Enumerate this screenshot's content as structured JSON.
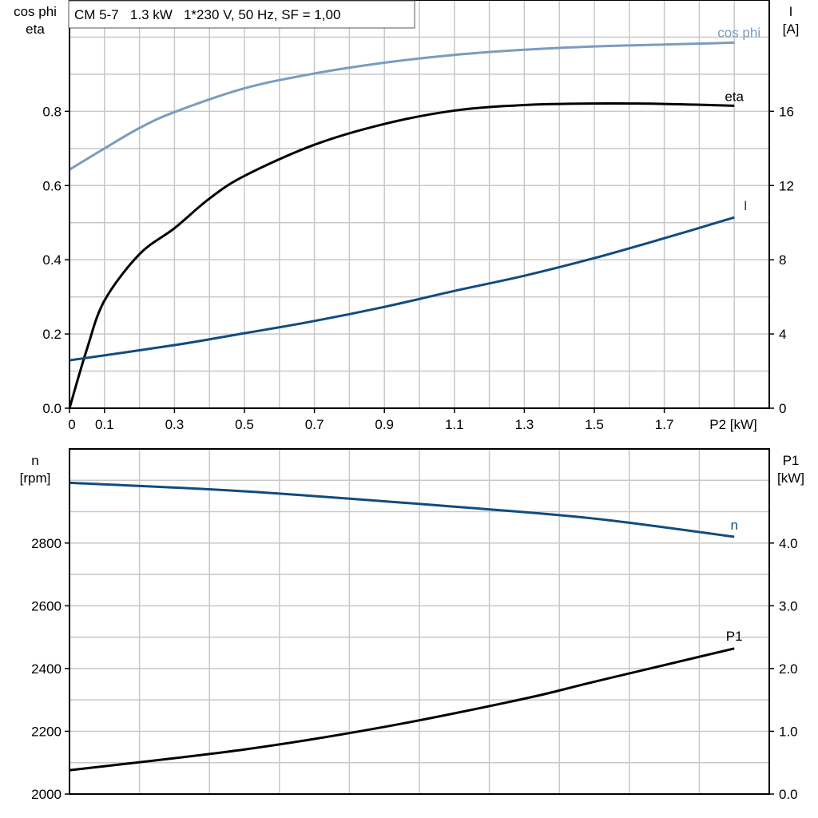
{
  "chart_data": [
    {
      "type": "line",
      "title": "CM 5-7   1.3 kW   1*230 V, 50 Hz, SF = 1,00",
      "xlabel": "P2 [kW]",
      "ylabel_left": [
        "cos phi",
        "eta"
      ],
      "ylabel_right": [
        "I",
        "[A]"
      ],
      "xlim": [
        0,
        2.0
      ],
      "ylim_left": [
        0,
        1.1
      ],
      "ylim_right": [
        0,
        22
      ],
      "grid": true,
      "x_ticks": [
        "0",
        "0.1",
        "0.3",
        "0.5",
        "0.7",
        "0.9",
        "1.1",
        "1.3",
        "1.5",
        "1.7"
      ],
      "y_left_ticks": [
        "0.0",
        "0.2",
        "0.4",
        "0.6",
        "0.8"
      ],
      "y_right_ticks": [
        "0",
        "4",
        "8",
        "12",
        "16"
      ],
      "series": [
        {
          "name": "cos phi",
          "axis": "left",
          "color": "#7a9cbf",
          "x": [
            0,
            0.1,
            0.2,
            0.3,
            0.5,
            0.7,
            0.9,
            1.1,
            1.3,
            1.5,
            1.7,
            1.9
          ],
          "y": [
            0.643,
            0.7,
            0.755,
            0.798,
            0.862,
            0.902,
            0.931,
            0.952,
            0.966,
            0.975,
            0.98,
            0.985
          ]
        },
        {
          "name": "eta",
          "axis": "left",
          "color": "#000000",
          "x": [
            0,
            0.05,
            0.1,
            0.2,
            0.3,
            0.4,
            0.5,
            0.7,
            0.9,
            1.1,
            1.3,
            1.5,
            1.7,
            1.9
          ],
          "y": [
            0,
            0.16,
            0.29,
            0.415,
            0.485,
            0.565,
            0.626,
            0.71,
            0.766,
            0.802,
            0.817,
            0.821,
            0.82,
            0.815
          ]
        },
        {
          "name": "I",
          "axis": "right",
          "color": "#0f4c81",
          "x": [
            0,
            0.3,
            0.5,
            0.7,
            0.9,
            1.1,
            1.3,
            1.5,
            1.7,
            1.9
          ],
          "y": [
            2.58,
            3.4,
            4.04,
            4.7,
            5.46,
            6.32,
            7.14,
            8.09,
            9.16,
            10.28
          ]
        }
      ]
    },
    {
      "type": "line",
      "ylabel_left": [
        "n",
        "[rpm]"
      ],
      "ylabel_right": [
        "P1",
        "[kW]"
      ],
      "xlim": [
        0,
        2.0
      ],
      "ylim_left": [
        2000,
        3100
      ],
      "ylim_right": [
        0,
        5.5
      ],
      "grid": true,
      "y_left_ticks": [
        "2000",
        "2200",
        "2400",
        "2600",
        "2800"
      ],
      "y_right_ticks": [
        "0.0",
        "1.0",
        "2.0",
        "3.0",
        "4.0"
      ],
      "series": [
        {
          "name": "n",
          "axis": "left",
          "color": "#0f4c81",
          "x": [
            0,
            0.5,
            1.1,
            1.5,
            1.9
          ],
          "y": [
            2992,
            2965,
            2916,
            2878,
            2820
          ]
        },
        {
          "name": "P1",
          "axis": "right",
          "color": "#000000",
          "x": [
            0,
            0.5,
            0.9,
            1.3,
            1.5,
            1.9
          ],
          "y": [
            0.38,
            0.71,
            1.07,
            1.52,
            1.79,
            2.32
          ]
        }
      ]
    }
  ]
}
